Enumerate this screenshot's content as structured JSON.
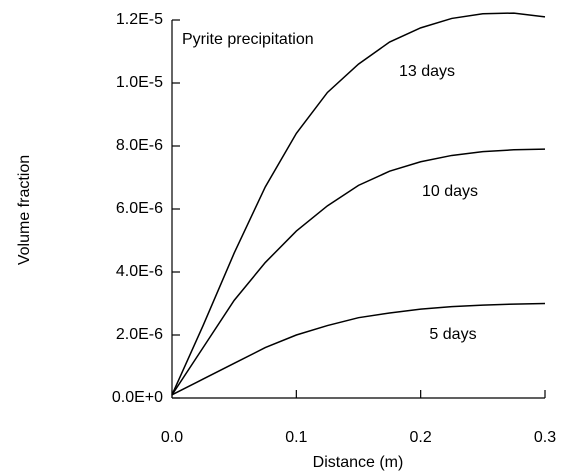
{
  "chart_data": {
    "type": "line",
    "annotation": "Pyrite precipitation",
    "x_label": "Distance (m)",
    "y_label": "Volume fraction",
    "x": [
      0,
      0.025,
      0.05,
      0.075,
      0.1,
      0.125,
      0.15,
      0.175,
      0.2,
      0.225,
      0.25,
      0.275,
      0.3
    ],
    "series": [
      {
        "name": "13 days",
        "color": "#000000",
        "values": [
          1e-07,
          2.3e-06,
          4.6e-06,
          6.7e-06,
          8.4e-06,
          9.7e-06,
          1.06e-05,
          1.13e-05,
          1.175e-05,
          1.205e-05,
          1.22e-05,
          1.222e-05,
          1.21e-05
        ]
      },
      {
        "name": "10 days",
        "color": "#000000",
        "values": [
          1e-07,
          1.6e-06,
          3.1e-06,
          4.3e-06,
          5.3e-06,
          6.1e-06,
          6.75e-06,
          7.2e-06,
          7.5e-06,
          7.7e-06,
          7.82e-06,
          7.88e-06,
          7.9e-06
        ]
      },
      {
        "name": "5 days",
        "color": "#000000",
        "values": [
          1e-07,
          6e-07,
          1.1e-06,
          1.6e-06,
          2e-06,
          2.3e-06,
          2.55e-06,
          2.7e-06,
          2.82e-06,
          2.9e-06,
          2.95e-06,
          2.98e-06,
          3e-06
        ]
      }
    ],
    "xlim": [
      0,
      0.3
    ],
    "xticks": [
      {
        "value": 0,
        "label": "0.0"
      },
      0.1,
      0.2,
      0.3
    ],
    "ylim": [
      0,
      1.2e-05
    ],
    "yticks": [
      {
        "value": 0,
        "label": "0.0E+0"
      },
      {
        "value": 2e-06,
        "label": "2.0E-6"
      },
      {
        "value": 4e-06,
        "label": "4.0E-6"
      },
      {
        "value": 6e-06,
        "label": "6.0E-6"
      },
      {
        "value": 8e-06,
        "label": "8.0E-6"
      },
      {
        "value": 1e-05,
        "label": "1.0E-5"
      },
      {
        "value": 1.2e-05,
        "label": "1.2E-5"
      }
    ],
    "grid": false
  }
}
